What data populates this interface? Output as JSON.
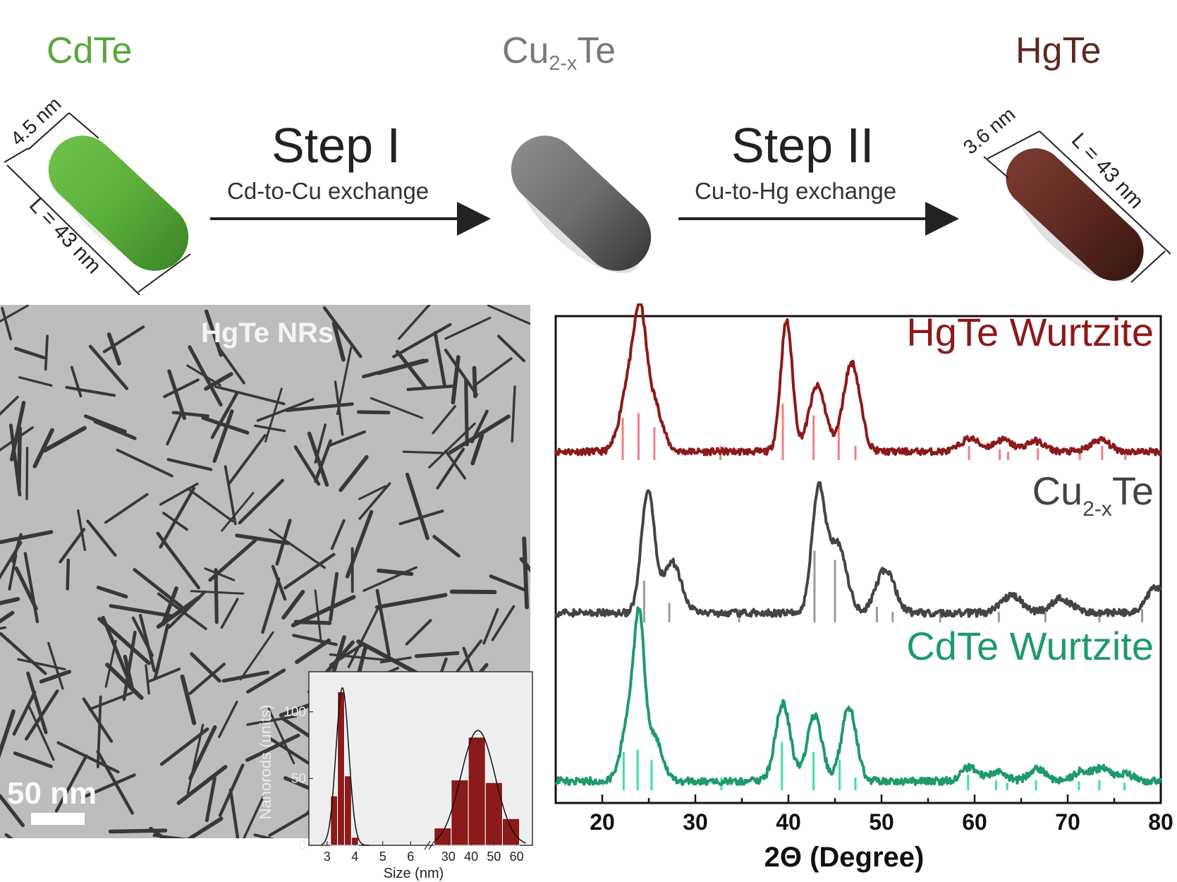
{
  "header": {
    "cdte_label": "CdTe",
    "cu_label_main": "Cu",
    "cu_label_sub": "2-x",
    "cu_label_end": "Te",
    "hgte_label": "HgTe",
    "step1_title": "Step I",
    "step1_sub": "Cd-to-Cu exchange",
    "step2_title": "Step II",
    "step2_sub": "Cu-to-Hg exchange",
    "cdte_width": "4.5 nm",
    "cdte_length": "L = 43 nm",
    "hgte_width": "3.6 nm",
    "hgte_length": "L = 43 nm"
  },
  "colors": {
    "cdte": "#5aa63c",
    "cu": "#7a7a7a",
    "hgte": "#5a2a22",
    "xrd_hgte": "#8b1a1a",
    "xrd_hgte_ref": "#f08080",
    "xrd_cu": "#444444",
    "xrd_cu_ref": "#9a9a9a",
    "xrd_cdte": "#1f9a6a",
    "xrd_cdte_ref": "#40e0a0",
    "hist_bar": "#8b1a1a"
  },
  "tem": {
    "label": "HgTe NRs",
    "scale_label": "50 nm"
  },
  "chart_data": [
    {
      "type": "bar",
      "name": "size-histogram-inset",
      "xlabel": "Size (nm)",
      "ylabel": "Nanorods (units)",
      "ylim": [
        0,
        130
      ],
      "x_ticks_left": [
        "3",
        "4",
        "5",
        "6"
      ],
      "x_ticks_right": [
        "30",
        "40",
        "50",
        "60"
      ],
      "y_ticks": [
        "0",
        "50",
        "100"
      ],
      "width_bins": {
        "centers": [
          3.25,
          3.5,
          3.75,
          4.0,
          4.25
        ],
        "values": [
          37,
          115,
          52,
          6,
          0
        ]
      },
      "length_bins": {
        "centers": [
          27.5,
          35,
          42.5,
          50,
          57.5
        ],
        "values": [
          13,
          49,
          81,
          47,
          20
        ]
      },
      "fit_peaks": {
        "width": {
          "center": 3.55,
          "height": 118
        },
        "length": {
          "center": 43,
          "height": 86
        }
      }
    },
    {
      "type": "line",
      "name": "xrd-patterns",
      "xlabel": "2Θ (Degree)",
      "xlim": [
        15,
        80
      ],
      "x_ticks": [
        "20",
        "30",
        "40",
        "50",
        "60",
        "70",
        "80"
      ],
      "series": [
        {
          "name": "HgTe Wurtzite",
          "peaks": [
            [
              22.9,
              0.55
            ],
            [
              24.1,
              0.8
            ],
            [
              25.5,
              0.38
            ],
            [
              39.8,
              1.0
            ],
            [
              43.1,
              0.5
            ],
            [
              46.8,
              0.68
            ],
            [
              59.5,
              0.1
            ],
            [
              63,
              0.09
            ],
            [
              66.5,
              0.08
            ],
            [
              73.5,
              0.09
            ]
          ],
          "ref_lines": [
            [
              22.2,
              0.36
            ],
            [
              23.9,
              0.4
            ],
            [
              25.6,
              0.28
            ],
            [
              32.7,
              0.12
            ],
            [
              39.4,
              0.48
            ],
            [
              42.7,
              0.38
            ],
            [
              45.4,
              0.3
            ],
            [
              47.2,
              0.12
            ],
            [
              59.4,
              0.12
            ],
            [
              62.7,
              0.09
            ],
            [
              63.6,
              0.07
            ],
            [
              66.8,
              0.1
            ],
            [
              71.3,
              0.08
            ],
            [
              73.7,
              0.12
            ],
            [
              76.2,
              0.07
            ]
          ]
        },
        {
          "name": "Cu2-xTe",
          "peaks": [
            [
              24.9,
              0.83
            ],
            [
              27.5,
              0.35
            ],
            [
              43.2,
              0.82
            ],
            [
              45.2,
              0.48
            ],
            [
              50.4,
              0.3
            ],
            [
              64,
              0.12
            ],
            [
              69.3,
              0.1
            ],
            [
              79.6,
              0.18
            ]
          ],
          "ref_lines": [
            [
              24.5,
              0.32
            ],
            [
              27.2,
              0.15
            ],
            [
              34.7,
              0.1
            ],
            [
              42.8,
              0.55
            ],
            [
              45,
              0.48
            ],
            [
              49.5,
              0.12
            ],
            [
              51.2,
              0.08
            ],
            [
              56.3,
              0.1
            ],
            [
              62.6,
              0.08
            ],
            [
              67.6,
              0.08
            ],
            [
              73.4,
              0.08
            ],
            [
              78,
              0.1
            ]
          ]
        },
        {
          "name": "CdTe Wurtzite",
          "peaks": [
            [
              22.9,
              0.45
            ],
            [
              24,
              1.0
            ],
            [
              25.6,
              0.32
            ],
            [
              39.4,
              0.55
            ],
            [
              42.8,
              0.46
            ],
            [
              46.5,
              0.52
            ],
            [
              59.5,
              0.1
            ],
            [
              62.5,
              0.07
            ],
            [
              66.7,
              0.09
            ],
            [
              71.5,
              0.07
            ],
            [
              73.7,
              0.09
            ],
            [
              76.2,
              0.05
            ]
          ],
          "ref_lines": [
            [
              22.3,
              0.3
            ],
            [
              23.8,
              0.32
            ],
            [
              25.3,
              0.24
            ],
            [
              32.8,
              0.1
            ],
            [
              39.3,
              0.38
            ],
            [
              42.7,
              0.3
            ],
            [
              45.5,
              0.24
            ],
            [
              47.2,
              0.1
            ],
            [
              59.3,
              0.12
            ],
            [
              62.3,
              0.08
            ],
            [
              63.5,
              0.06
            ],
            [
              66.6,
              0.08
            ],
            [
              71.2,
              0.07
            ],
            [
              73.4,
              0.08
            ],
            [
              76.1,
              0.06
            ]
          ]
        }
      ]
    }
  ]
}
